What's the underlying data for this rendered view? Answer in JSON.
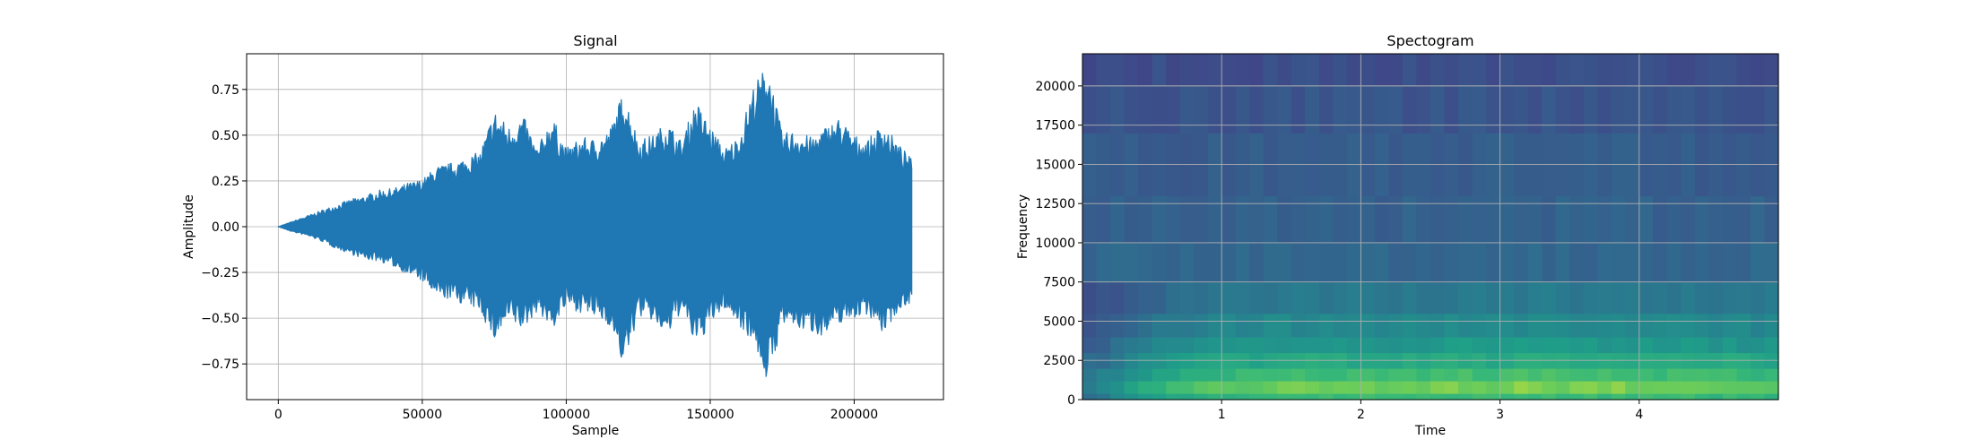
{
  "chart_data": [
    {
      "type": "line",
      "title": "Signal",
      "xlabel": "Sample",
      "ylabel": "Amplitude",
      "xlim": [
        -11000,
        231000
      ],
      "ylim": [
        -0.945,
        0.945
      ],
      "grid": true,
      "x_ticks": [
        {
          "value": 0,
          "label": "0"
        },
        {
          "value": 50000,
          "label": "50000"
        },
        {
          "value": 100000,
          "label": "100000"
        },
        {
          "value": 150000,
          "label": "150000"
        },
        {
          "value": 200000,
          "label": "200000"
        }
      ],
      "y_ticks": [
        {
          "value": 0.75,
          "label": "0.75"
        },
        {
          "value": 0.5,
          "label": "0.50"
        },
        {
          "value": 0.25,
          "label": "0.25"
        },
        {
          "value": 0.0,
          "label": "0.00"
        },
        {
          "value": -0.25,
          "label": "−0.25"
        },
        {
          "value": -0.5,
          "label": "−0.50"
        },
        {
          "value": -0.75,
          "label": "−0.75"
        }
      ],
      "series": [
        {
          "color": "#1f77b4",
          "x": [
            0,
            5000,
            10000,
            15000,
            20000,
            25000,
            30000,
            35000,
            40000,
            45000,
            50000,
            55000,
            60000,
            65000,
            70000,
            75000,
            80000,
            85000,
            90000,
            95000,
            100000,
            105000,
            110000,
            115000,
            120000,
            125000,
            130000,
            135000,
            140000,
            145000,
            150000,
            155000,
            160000,
            165000,
            170000,
            175000,
            180000,
            185000,
            190000,
            195000,
            200000,
            205000,
            210000,
            215000,
            220000
          ],
          "upper": [
            0.0,
            0.03,
            0.06,
            0.09,
            0.12,
            0.15,
            0.17,
            0.2,
            0.21,
            0.24,
            0.26,
            0.33,
            0.35,
            0.38,
            0.41,
            0.64,
            0.55,
            0.61,
            0.43,
            0.61,
            0.43,
            0.49,
            0.48,
            0.53,
            0.75,
            0.48,
            0.5,
            0.58,
            0.47,
            0.69,
            0.55,
            0.43,
            0.5,
            0.77,
            0.9,
            0.51,
            0.53,
            0.49,
            0.55,
            0.6,
            0.5,
            0.48,
            0.57,
            0.46,
            0.37
          ],
          "lower": [
            0.0,
            -0.03,
            -0.05,
            -0.08,
            -0.12,
            -0.15,
            -0.18,
            -0.19,
            -0.22,
            -0.26,
            -0.3,
            -0.39,
            -0.4,
            -0.43,
            -0.46,
            -0.63,
            -0.52,
            -0.57,
            -0.46,
            -0.57,
            -0.44,
            -0.47,
            -0.5,
            -0.54,
            -0.77,
            -0.49,
            -0.52,
            -0.61,
            -0.46,
            -0.66,
            -0.54,
            -0.45,
            -0.54,
            -0.63,
            -0.86,
            -0.54,
            -0.56,
            -0.58,
            -0.6,
            -0.53,
            -0.5,
            -0.48,
            -0.59,
            -0.47,
            -0.41
          ]
        }
      ]
    },
    {
      "type": "heatmap",
      "title": "Spectogram",
      "xlabel": "Time",
      "ylabel": "Frequency",
      "xlim": [
        0,
        5.0
      ],
      "ylim": [
        0,
        22050
      ],
      "grid": true,
      "colormap": "viridis",
      "x_ticks": [
        {
          "value": 1,
          "label": "1"
        },
        {
          "value": 2,
          "label": "2"
        },
        {
          "value": 3,
          "label": "3"
        },
        {
          "value": 4,
          "label": "4"
        }
      ],
      "y_ticks": [
        {
          "value": 0,
          "label": "0"
        },
        {
          "value": 2500,
          "label": "2500"
        },
        {
          "value": 5000,
          "label": "5000"
        },
        {
          "value": 7500,
          "label": "7500"
        },
        {
          "value": 10000,
          "label": "10000"
        },
        {
          "value": 12500,
          "label": "12500"
        },
        {
          "value": 15000,
          "label": "15000"
        },
        {
          "value": 17500,
          "label": "17500"
        },
        {
          "value": 20000,
          "label": "20000"
        }
      ],
      "time_bins": 50,
      "frequency_bands": [
        {
          "from": 0,
          "to": 400,
          "intensity": 0.78
        },
        {
          "from": 400,
          "to": 1200,
          "intensity": 0.9
        },
        {
          "from": 1200,
          "to": 2000,
          "intensity": 0.8
        },
        {
          "from": 2000,
          "to": 3000,
          "intensity": 0.7
        },
        {
          "from": 3000,
          "to": 4000,
          "intensity": 0.62
        },
        {
          "from": 4000,
          "to": 5500,
          "intensity": 0.55
        },
        {
          "from": 5500,
          "to": 7500,
          "intensity": 0.47
        },
        {
          "from": 7500,
          "to": 10000,
          "intensity": 0.38
        },
        {
          "from": 10000,
          "to": 13000,
          "intensity": 0.35
        },
        {
          "from": 13000,
          "to": 17000,
          "intensity": 0.33
        },
        {
          "from": 17000,
          "to": 20000,
          "intensity": 0.3
        },
        {
          "from": 20000,
          "to": 22050,
          "intensity": 0.27
        }
      ],
      "time_envelope": [
        0.55,
        0.6,
        0.66,
        0.72,
        0.78,
        0.82,
        0.85,
        0.88,
        0.9,
        0.92,
        0.93,
        0.94,
        0.95,
        0.96,
        0.96,
        0.96,
        0.97,
        0.97,
        0.96,
        0.97,
        0.98,
        0.97,
        0.96,
        0.96,
        0.97,
        0.97,
        0.98,
        0.99,
        0.98,
        0.97,
        0.98,
        0.99,
        1.0,
        0.99,
        0.98,
        0.98,
        0.97,
        0.97,
        0.98,
        0.97,
        0.97,
        0.96,
        0.96,
        0.97,
        0.96,
        0.95,
        0.96,
        0.95,
        0.94,
        0.94
      ]
    }
  ]
}
